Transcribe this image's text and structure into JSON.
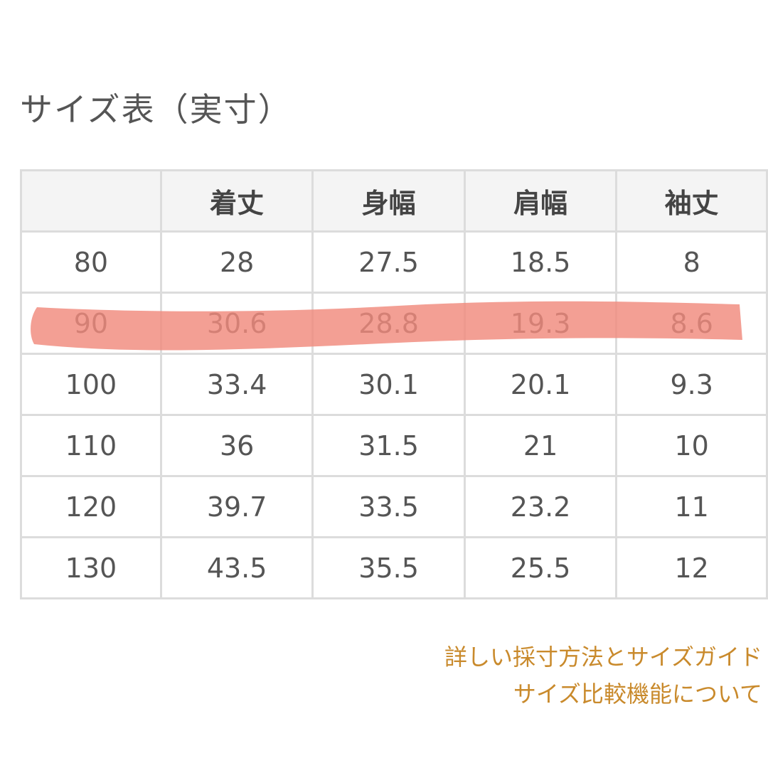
{
  "title": "サイズ表（実寸）",
  "table": {
    "headers": [
      "",
      "着丈",
      "身幅",
      "肩幅",
      "袖丈"
    ],
    "rows": [
      [
        "80",
        "28",
        "27.5",
        "18.5",
        "8"
      ],
      [
        "90",
        "30.6",
        "28.8",
        "19.3",
        "8.6"
      ],
      [
        "100",
        "33.4",
        "30.1",
        "20.1",
        "9.3"
      ],
      [
        "110",
        "36",
        "31.5",
        "21",
        "10"
      ],
      [
        "120",
        "39.7",
        "33.5",
        "23.2",
        "11"
      ],
      [
        "130",
        "43.5",
        "35.5",
        "25.5",
        "12"
      ]
    ],
    "highlighted_row": "90"
  },
  "links": {
    "measure_guide": "詳しい採寸方法とサイズガイド",
    "size_compare": "サイズ比較機能について"
  },
  "colors": {
    "highlight": "#f08a7c",
    "link": "#c98a2c",
    "border": "#dcdcdc",
    "header_bg": "#f4f4f4"
  }
}
